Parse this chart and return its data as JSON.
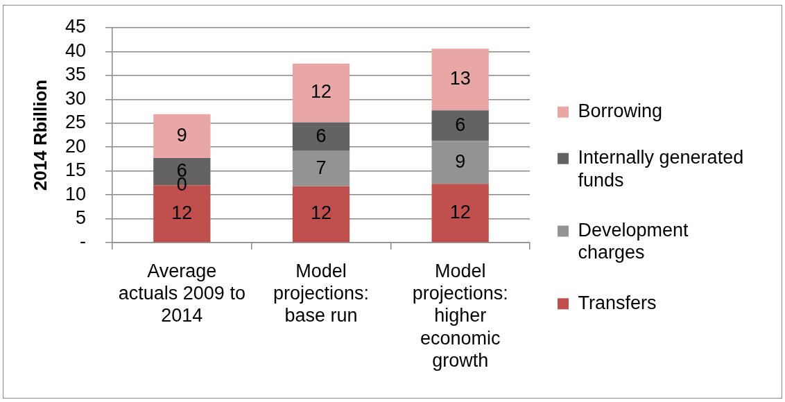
{
  "chart_data": {
    "type": "bar",
    "stacked": true,
    "ylabel": "2014 Rbillion",
    "categories": [
      "Average actuals 2009 to 2014",
      "Model projections: base run",
      "Model projections: higher economic growth"
    ],
    "series": [
      {
        "name": "Transfers",
        "color": "#c0504d",
        "values": [
          12.0,
          11.8,
          12.3
        ],
        "value_labels": [
          "12",
          "12",
          "12"
        ]
      },
      {
        "name": "Development charges",
        "color": "#939393",
        "values": [
          0,
          7.4,
          9.0
        ],
        "value_labels": [
          "0",
          "7",
          "9"
        ]
      },
      {
        "name": "Internally generated funds",
        "color": "#636363",
        "values": [
          5.7,
          6.0,
          6.4
        ],
        "value_labels": [
          "6",
          "6",
          "6"
        ]
      },
      {
        "name": "Borrowing",
        "color": "#e8a6a5",
        "values": [
          9.2,
          12.3,
          12.9
        ],
        "value_labels": [
          "9",
          "12",
          "13"
        ]
      }
    ],
    "ylim": [
      0,
      45
    ],
    "yticks": [
      {
        "value": 0,
        "label": "-"
      },
      5,
      10,
      15,
      20,
      25,
      30,
      35,
      40,
      45
    ],
    "grid": "y",
    "legend": "right"
  }
}
